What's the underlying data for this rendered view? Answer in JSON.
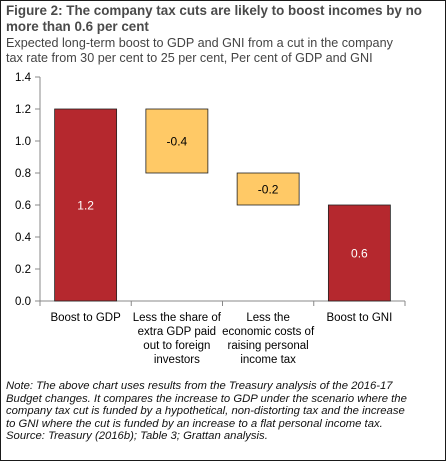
{
  "figure": {
    "title_lines": [
      "Figure 2: The company tax cuts are likely to boost incomes by no",
      "more than 0.6 per cent"
    ],
    "subtitle_lines": [
      "Expected long-term boost to GDP and GNI from a cut in the company",
      "tax rate from 30 per cent to 25 per cent, Per cent of GDP and GNI"
    ],
    "note_lines": [
      "Note: The above chart uses results from the Treasury analysis of the 2016-17",
      "Budget changes. It compares the increase to GDP under the scenario where the",
      "company tax cut is funded by a hypothetical, non-distorting tax and the increase",
      "to GNI where the cut is funded by an increase to a flat personal income tax.",
      "Source: Treasury (2016b); Table 3; Grattan analysis."
    ]
  },
  "colors": {
    "total_bar": "#b5282e",
    "step_bar": "#ffc966",
    "axis": "#888888",
    "text": "#000000"
  },
  "chart_data": {
    "type": "bar",
    "subtype": "waterfall",
    "title": "",
    "xlabel": "",
    "ylabel": "",
    "ylim": [
      0,
      1.4
    ],
    "yticks": [
      "0.0",
      "0.2",
      "0.4",
      "0.6",
      "0.8",
      "1.0",
      "1.2",
      "1.4"
    ],
    "grid": false,
    "legend": "none",
    "categories": [
      [
        "Boost to GDP"
      ],
      [
        "Less the share of",
        "extra GDP paid",
        "out to foreign",
        "investors"
      ],
      [
        "Less the",
        "economic costs of",
        "raising personal",
        "income tax"
      ],
      [
        "Boost to GNI"
      ]
    ],
    "bars": [
      {
        "kind": "total",
        "start": 0,
        "end": 1.2,
        "label": "1.2"
      },
      {
        "kind": "step",
        "start": 1.2,
        "end": 0.8,
        "label": "-0.4"
      },
      {
        "kind": "step",
        "start": 0.8,
        "end": 0.6,
        "label": "-0.2"
      },
      {
        "kind": "total",
        "start": 0,
        "end": 0.6,
        "label": "0.6"
      }
    ]
  }
}
